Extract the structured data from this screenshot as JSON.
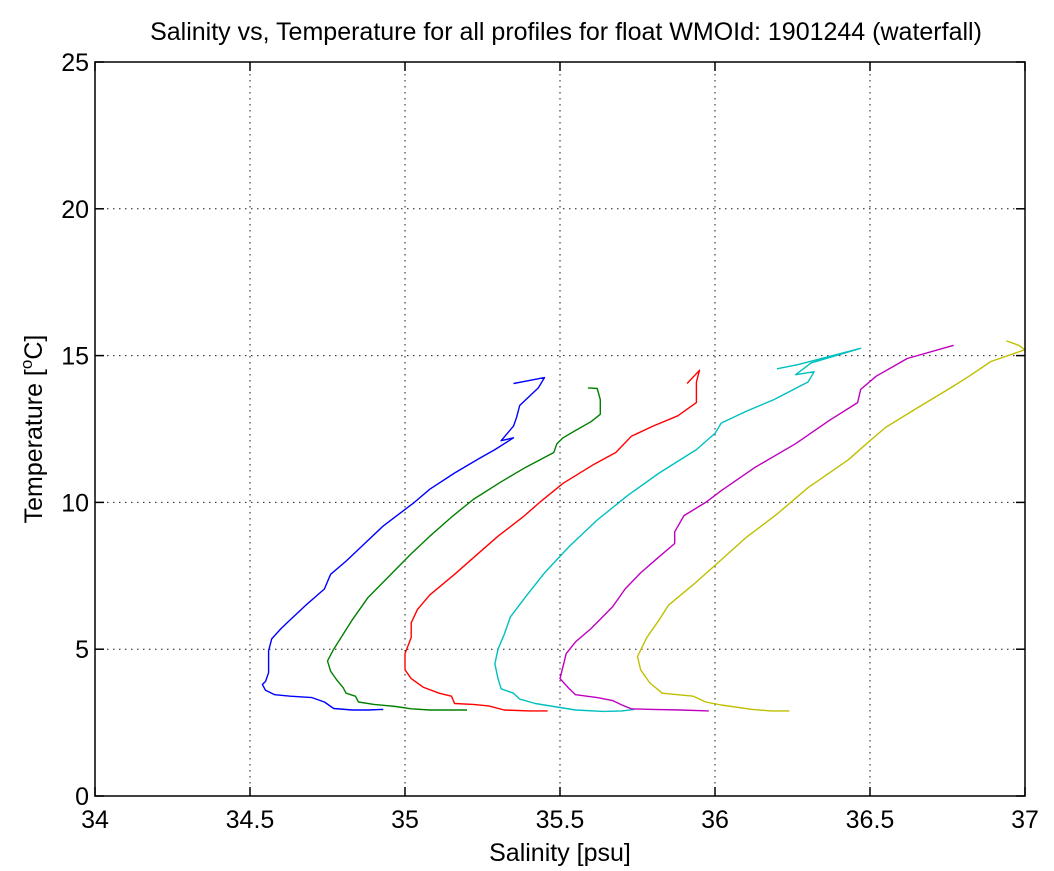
{
  "chart_data": {
    "type": "line",
    "title": "Salinity vs, Temperature for all profiles for float WMOId: 1901244 (waterfall)",
    "xlabel": "Salinity [psu]",
    "ylabel_main": "Temperature [",
    "ylabel_sup": "o",
    "ylabel_end": "C]",
    "xlim": [
      34,
      37
    ],
    "ylim": [
      0,
      25
    ],
    "xticks": [
      34,
      34.5,
      35,
      35.5,
      36,
      36.5,
      37
    ],
    "xtick_labels": [
      "34",
      "34.5",
      "35",
      "35.5",
      "36",
      "36.5",
      "37"
    ],
    "yticks": [
      0,
      5,
      10,
      15,
      20,
      25
    ],
    "ytick_labels": [
      "0",
      "5",
      "10",
      "15",
      "20",
      "25"
    ],
    "grid": true,
    "series": [
      {
        "color": "#0000ff",
        "points": [
          [
            35.35,
            14.05
          ],
          [
            35.45,
            14.25
          ],
          [
            35.43,
            13.9
          ],
          [
            35.37,
            13.3
          ],
          [
            35.36,
            12.9
          ],
          [
            35.35,
            12.6
          ],
          [
            35.31,
            12.1
          ],
          [
            35.35,
            12.2
          ],
          [
            35.29,
            11.8
          ],
          [
            35.24,
            11.5
          ],
          [
            35.16,
            11.0
          ],
          [
            35.08,
            10.45
          ],
          [
            35.03,
            10.0
          ],
          [
            34.93,
            9.2
          ],
          [
            34.85,
            8.4
          ],
          [
            34.81,
            8.0
          ],
          [
            34.76,
            7.55
          ],
          [
            34.74,
            7.05
          ],
          [
            34.68,
            6.5
          ],
          [
            34.63,
            6.0
          ],
          [
            34.6,
            5.7
          ],
          [
            34.57,
            5.35
          ],
          [
            34.56,
            4.95
          ],
          [
            34.56,
            4.65
          ],
          [
            34.56,
            4.2
          ],
          [
            34.55,
            3.9
          ],
          [
            34.54,
            3.8
          ],
          [
            34.55,
            3.6
          ],
          [
            34.58,
            3.45
          ],
          [
            34.63,
            3.4
          ],
          [
            34.7,
            3.35
          ],
          [
            34.74,
            3.2
          ],
          [
            34.77,
            2.98
          ],
          [
            34.83,
            2.93
          ],
          [
            34.88,
            2.93
          ],
          [
            34.93,
            2.95
          ]
        ]
      },
      {
        "color": "#008000",
        "points": [
          [
            35.59,
            13.9
          ],
          [
            35.62,
            13.88
          ],
          [
            35.63,
            13.5
          ],
          [
            35.63,
            13.0
          ],
          [
            35.6,
            12.75
          ],
          [
            35.55,
            12.45
          ],
          [
            35.51,
            12.2
          ],
          [
            35.49,
            12.0
          ],
          [
            35.48,
            11.7
          ],
          [
            35.39,
            11.2
          ],
          [
            35.31,
            10.7
          ],
          [
            35.22,
            10.1
          ],
          [
            35.15,
            9.5
          ],
          [
            35.08,
            8.85
          ],
          [
            35.02,
            8.25
          ],
          [
            34.95,
            7.5
          ],
          [
            34.88,
            6.75
          ],
          [
            34.83,
            6.0
          ],
          [
            34.8,
            5.5
          ],
          [
            34.77,
            5.0
          ],
          [
            34.75,
            4.6
          ],
          [
            34.76,
            4.25
          ],
          [
            34.78,
            3.95
          ],
          [
            34.8,
            3.7
          ],
          [
            34.81,
            3.5
          ],
          [
            34.84,
            3.4
          ],
          [
            34.85,
            3.2
          ],
          [
            34.9,
            3.12
          ],
          [
            34.97,
            3.05
          ],
          [
            35.02,
            2.97
          ],
          [
            35.08,
            2.93
          ],
          [
            35.14,
            2.93
          ],
          [
            35.2,
            2.93
          ]
        ]
      },
      {
        "color": "#ff0000",
        "points": [
          [
            35.91,
            14.05
          ],
          [
            35.95,
            14.5
          ],
          [
            35.94,
            14.1
          ],
          [
            35.94,
            13.4
          ],
          [
            35.88,
            12.95
          ],
          [
            35.8,
            12.6
          ],
          [
            35.73,
            12.25
          ],
          [
            35.68,
            11.7
          ],
          [
            35.61,
            11.3
          ],
          [
            35.51,
            10.65
          ],
          [
            35.44,
            10.05
          ],
          [
            35.38,
            9.5
          ],
          [
            35.3,
            8.85
          ],
          [
            35.23,
            8.2
          ],
          [
            35.16,
            7.55
          ],
          [
            35.08,
            6.85
          ],
          [
            35.04,
            6.35
          ],
          [
            35.02,
            5.9
          ],
          [
            35.02,
            5.4
          ],
          [
            35.0,
            4.85
          ],
          [
            35.0,
            4.3
          ],
          [
            35.02,
            4.0
          ],
          [
            35.06,
            3.7
          ],
          [
            35.11,
            3.5
          ],
          [
            35.15,
            3.4
          ],
          [
            35.16,
            3.15
          ],
          [
            35.22,
            3.12
          ],
          [
            35.27,
            3.07
          ],
          [
            35.32,
            2.93
          ],
          [
            35.4,
            2.9
          ],
          [
            35.46,
            2.9
          ]
        ]
      },
      {
        "color": "#00bfbf",
        "points": [
          [
            36.2,
            14.55
          ],
          [
            36.27,
            14.7
          ],
          [
            36.47,
            15.25
          ],
          [
            36.31,
            14.75
          ],
          [
            36.26,
            14.35
          ],
          [
            36.32,
            14.45
          ],
          [
            36.3,
            14.1
          ],
          [
            36.19,
            13.5
          ],
          [
            36.1,
            13.1
          ],
          [
            36.02,
            12.7
          ],
          [
            36.0,
            12.35
          ],
          [
            35.94,
            11.8
          ],
          [
            35.82,
            11.0
          ],
          [
            35.72,
            10.25
          ],
          [
            35.62,
            9.4
          ],
          [
            35.53,
            8.5
          ],
          [
            35.45,
            7.6
          ],
          [
            35.39,
            6.8
          ],
          [
            35.34,
            6.1
          ],
          [
            35.32,
            5.5
          ],
          [
            35.3,
            5.0
          ],
          [
            35.29,
            4.5
          ],
          [
            35.3,
            4.0
          ],
          [
            35.31,
            3.65
          ],
          [
            35.35,
            3.5
          ],
          [
            35.37,
            3.3
          ],
          [
            35.42,
            3.15
          ],
          [
            35.48,
            3.05
          ],
          [
            35.55,
            2.93
          ],
          [
            35.64,
            2.88
          ],
          [
            35.7,
            2.9
          ],
          [
            35.74,
            2.95
          ]
        ]
      },
      {
        "color": "#bf00bf",
        "points": [
          [
            36.77,
            15.35
          ],
          [
            36.62,
            14.9
          ],
          [
            36.52,
            14.3
          ],
          [
            36.47,
            13.85
          ],
          [
            36.46,
            13.4
          ],
          [
            36.37,
            12.8
          ],
          [
            36.26,
            12.0
          ],
          [
            36.13,
            11.2
          ],
          [
            36.02,
            10.4
          ],
          [
            35.97,
            10.0
          ],
          [
            35.9,
            9.55
          ],
          [
            35.87,
            9.0
          ],
          [
            35.87,
            8.6
          ],
          [
            35.82,
            8.15
          ],
          [
            35.76,
            7.6
          ],
          [
            35.71,
            7.05
          ],
          [
            35.67,
            6.45
          ],
          [
            35.6,
            5.7
          ],
          [
            35.55,
            5.25
          ],
          [
            35.52,
            4.85
          ],
          [
            35.5,
            4.0
          ],
          [
            35.53,
            3.65
          ],
          [
            35.55,
            3.45
          ],
          [
            35.62,
            3.35
          ],
          [
            35.67,
            3.25
          ],
          [
            35.7,
            3.1
          ],
          [
            35.73,
            2.97
          ],
          [
            35.8,
            2.95
          ],
          [
            35.89,
            2.93
          ],
          [
            35.98,
            2.9
          ]
        ]
      },
      {
        "color": "#bfbf00",
        "points": [
          [
            36.94,
            15.5
          ],
          [
            36.98,
            15.35
          ],
          [
            37.0,
            15.2
          ],
          [
            36.89,
            14.8
          ],
          [
            36.82,
            14.3
          ],
          [
            36.76,
            13.9
          ],
          [
            36.65,
            13.2
          ],
          [
            36.55,
            12.55
          ],
          [
            36.5,
            12.1
          ],
          [
            36.43,
            11.45
          ],
          [
            36.3,
            10.5
          ],
          [
            36.2,
            9.6
          ],
          [
            36.1,
            8.8
          ],
          [
            36.01,
            7.95
          ],
          [
            35.93,
            7.2
          ],
          [
            35.85,
            6.5
          ],
          [
            35.82,
            6.0
          ],
          [
            35.78,
            5.4
          ],
          [
            35.75,
            4.75
          ],
          [
            35.76,
            4.3
          ],
          [
            35.79,
            3.85
          ],
          [
            35.83,
            3.5
          ],
          [
            35.93,
            3.4
          ],
          [
            35.97,
            3.2
          ],
          [
            36.02,
            3.1
          ],
          [
            36.12,
            2.95
          ],
          [
            36.18,
            2.9
          ],
          [
            36.24,
            2.9
          ]
        ]
      }
    ]
  }
}
